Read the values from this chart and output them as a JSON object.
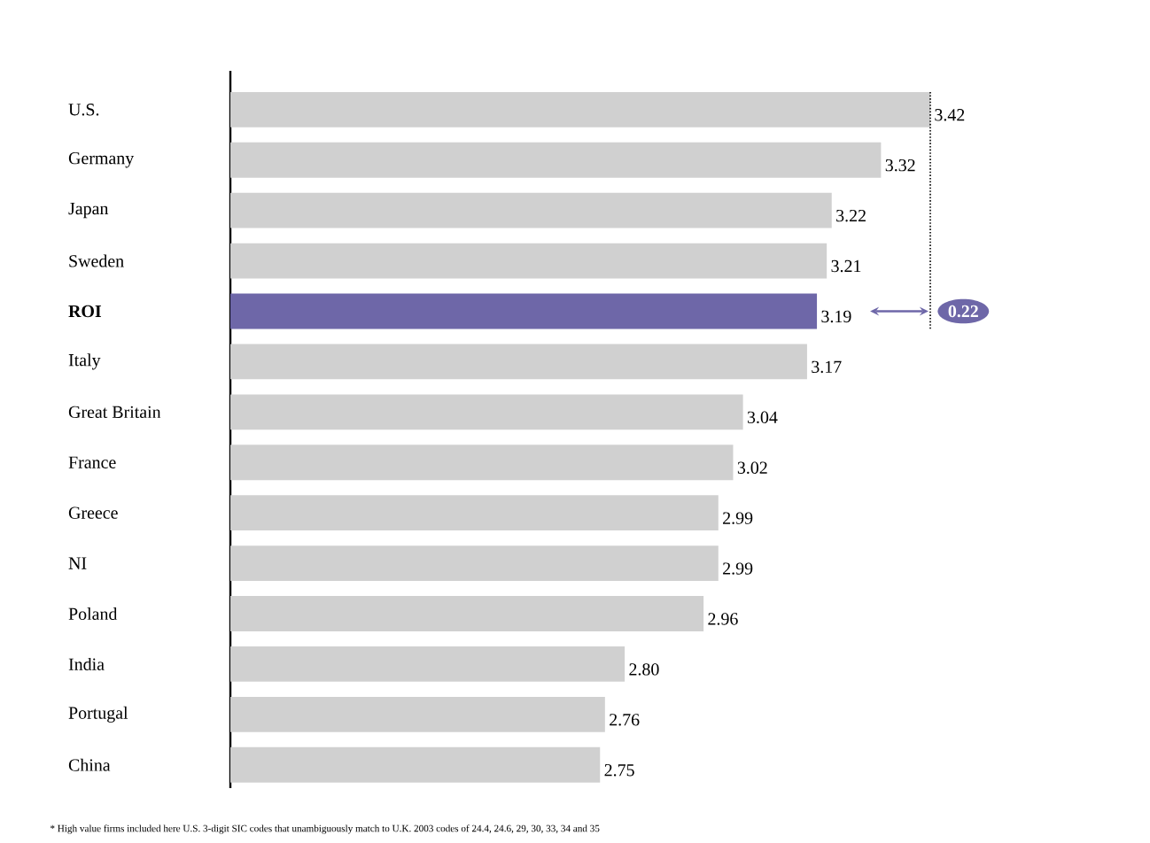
{
  "chart_data": {
    "type": "bar",
    "orientation": "horizontal",
    "categories": [
      "U.S.",
      "Germany",
      "Japan",
      "Sweden",
      "**ROI**",
      "Italy",
      "Great Britain",
      "France",
      "Greece",
      "NI",
      "Poland",
      "India",
      "Portugal",
      "China"
    ],
    "values": [
      3.42,
      3.32,
      3.22,
      3.21,
      3.19,
      3.17,
      3.04,
      3.02,
      2.99,
      2.99,
      2.96,
      2.8,
      2.76,
      2.75
    ],
    "value_labels": [
      "3.42",
      "3.32",
      "3.22",
      "3.21",
      "3.19",
      "3.17",
      "3.04",
      "3.02",
      "2.99",
      "2.99",
      "2.96",
      "2.80",
      "2.76",
      "2.75"
    ],
    "colors": [
      "#d0d0d0",
      "#d0d0d0",
      "#d0d0d0",
      "#d0d0d0",
      "#6e67a8",
      "#d0d0d0",
      "#d0d0d0",
      "#d0d0d0",
      "#d0d0d0",
      "#d0d0d0",
      "#d0d0d0",
      "#d0d0d0",
      "#d0d0d0",
      "#d0d0d0"
    ],
    "xlim": [
      2,
      3.42
    ],
    "tick_labels": "y",
    "legend": false,
    "annotations": [
      "* High value firms included here U.S. 3-digit SIC codes that unambiguously match to U.K. 2003 codes of 24.4, 24.6, 29, 30, 33, 34 and 35",
      "0.22"
    ]
  }
}
